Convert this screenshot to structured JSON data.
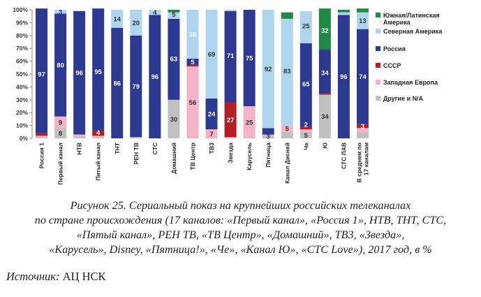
{
  "chart_data": {
    "type": "bar",
    "stacked": true,
    "percent": true,
    "ylim": [
      0,
      100
    ],
    "yticks": [
      "0%",
      "10%",
      "20%",
      "30%",
      "40%",
      "50%",
      "60%",
      "70%",
      "80%",
      "90%",
      "100%"
    ],
    "categories": [
      "Россия 1",
      "Первый канал",
      "НТВ",
      "Пятый канал",
      "ТНТ",
      "РЕН ТВ",
      "СТС",
      "Домашний",
      "ТВ Центр",
      "ТВ3",
      "Звезда",
      "Карусель",
      "Пятница",
      "Канал Дисней",
      "Че",
      "Ю",
      "СТС ЛАВ",
      "В среднем по 17 каналам"
    ],
    "series": [
      {
        "name": "Другие и N/A",
        "color": "#c0c0c0",
        "values": [
          1,
          8,
          2,
          1,
          0,
          1,
          0,
          30,
          0,
          0,
          0,
          0,
          3,
          5,
          5,
          34,
          0,
          5
        ]
      },
      {
        "name": "Западная Европа",
        "color": "#f6b2c8",
        "values": [
          1,
          9,
          1,
          1,
          0,
          0,
          0,
          0,
          56,
          7,
          1,
          25,
          0,
          5,
          2,
          0,
          0,
          3
        ]
      },
      {
        "name": "СССР",
        "color": "#b21e23",
        "values": [
          2,
          0,
          0,
          4,
          0,
          0,
          0,
          0,
          1,
          0,
          27,
          0,
          0,
          0,
          2,
          1,
          0,
          3
        ]
      },
      {
        "name": "Россия",
        "color": "#2b3990",
        "values": [
          97,
          80,
          96,
          95,
          86,
          79,
          96,
          63,
          5,
          24,
          71,
          75,
          5,
          0,
          65,
          34,
          96,
          74
        ]
      },
      {
        "name": "Северная Америка",
        "color": "#aed4ef",
        "values": [
          0,
          3,
          0,
          0,
          14,
          20,
          4,
          5,
          38,
          69,
          1,
          0,
          92,
          83,
          25,
          0,
          2,
          13
        ]
      },
      {
        "name": "Южная/Латинская Америка",
        "color": "#1f8a45",
        "values": [
          0,
          0,
          0,
          0,
          0,
          0,
          0,
          2,
          0,
          0,
          0,
          0,
          0,
          5,
          0,
          32,
          2,
          3
        ]
      }
    ],
    "labels": [
      {
        "bar": 0,
        "text": "97",
        "y": 50,
        "color": "#ffffff"
      },
      {
        "bar": 1,
        "text": "3",
        "y": 98.5,
        "color": "#2b3990"
      },
      {
        "bar": 1,
        "text": "80",
        "y": 57,
        "color": "#ffffff"
      },
      {
        "bar": 1,
        "text": "9",
        "y": 12.5,
        "color": "#333333"
      },
      {
        "bar": 1,
        "text": "8",
        "y": 4,
        "color": "#333333"
      },
      {
        "bar": 2,
        "text": "96",
        "y": 51,
        "color": "#ffffff"
      },
      {
        "bar": 3,
        "text": "95",
        "y": 52,
        "color": "#ffffff"
      },
      {
        "bar": 3,
        "text": "4",
        "y": 4.5,
        "color": "#ffffff"
      },
      {
        "bar": 4,
        "text": "14",
        "y": 93,
        "color": "#333333"
      },
      {
        "bar": 4,
        "text": "86",
        "y": 43,
        "color": "#ffffff"
      },
      {
        "bar": 5,
        "text": "20",
        "y": 90,
        "color": "#333333"
      },
      {
        "bar": 5,
        "text": "79",
        "y": 40.5,
        "color": "#ffffff"
      },
      {
        "bar": 6,
        "text": "4",
        "y": 98,
        "color": "#333333"
      },
      {
        "bar": 6,
        "text": "96",
        "y": 48,
        "color": "#ffffff"
      },
      {
        "bar": 7,
        "text": "5",
        "y": 96.5,
        "color": "#333333"
      },
      {
        "bar": 7,
        "text": "63",
        "y": 62,
        "color": "#ffffff"
      },
      {
        "bar": 7,
        "text": "30",
        "y": 15,
        "color": "#333333"
      },
      {
        "bar": 8,
        "text": "38",
        "y": 81,
        "color": "#ffffff"
      },
      {
        "bar": 8,
        "text": "5",
        "y": 59.5,
        "color": "#ffffff"
      },
      {
        "bar": 8,
        "text": "56",
        "y": 28,
        "color": "#333333"
      },
      {
        "bar": 9,
        "text": "69",
        "y": 65.5,
        "color": "#333333"
      },
      {
        "bar": 9,
        "text": "24",
        "y": 19,
        "color": "#ffffff"
      },
      {
        "bar": 9,
        "text": "7",
        "y": 3.5,
        "color": "#333333"
      },
      {
        "bar": 10,
        "text": "71",
        "y": 64.5,
        "color": "#ffffff"
      },
      {
        "bar": 10,
        "text": "27",
        "y": 14.5,
        "color": "#ffffff"
      },
      {
        "bar": 11,
        "text": "75",
        "y": 62.5,
        "color": "#ffffff"
      },
      {
        "bar": 11,
        "text": "25",
        "y": 12.5,
        "color": "#333333"
      },
      {
        "bar": 12,
        "text": "92",
        "y": 54,
        "color": "#333333"
      },
      {
        "bar": 12,
        "text": "3",
        "y": 1.5,
        "color": "#333333"
      },
      {
        "bar": 13,
        "text": "83",
        "y": 52.5,
        "color": "#333333"
      },
      {
        "bar": 13,
        "text": "5",
        "y": 7.5,
        "color": "#333333"
      },
      {
        "bar": 14,
        "text": "25",
        "y": 87.5,
        "color": "#333333"
      },
      {
        "bar": 14,
        "text": "65",
        "y": 42.5,
        "color": "#ffffff"
      },
      {
        "bar": 14,
        "text": "2",
        "y": 11,
        "color": "#ffffff"
      },
      {
        "bar": 14,
        "text": "5",
        "y": 2.5,
        "color": "#333333"
      },
      {
        "bar": 15,
        "text": "32",
        "y": 84,
        "color": "#ffffff"
      },
      {
        "bar": 15,
        "text": "34",
        "y": 51,
        "color": "#ffffff"
      },
      {
        "bar": 15,
        "text": "34",
        "y": 17,
        "color": "#333333"
      },
      {
        "bar": 16,
        "text": "96",
        "y": 48,
        "color": "#ffffff"
      },
      {
        "bar": 17,
        "text": "13",
        "y": 91.5,
        "color": "#333333"
      },
      {
        "bar": 17,
        "text": "74",
        "y": 48,
        "color": "#ffffff"
      },
      {
        "bar": 17,
        "text": "3",
        "y": 9.5,
        "color": "#ffffff"
      }
    ],
    "legend": [
      "Южная/Латинская Америка",
      "Северная Америка",
      "Россия",
      "СССР",
      "Западная Европа",
      "Другие и N/A"
    ],
    "legend_position": "right"
  },
  "caption_lines": [
    "Рисунок 25. Сериальный показ на крупнейших российских телеканалах",
    "по стране происхождения (17 каналов: «Первый канал», «Россия 1», НТВ, ТНТ, СТС,",
    "«Пятый канал», РЕН ТВ, «ТВ Центр», «Домашний», ТВ3, «Звезда»,",
    "«Карусель», Disney, «Пятница!», «Че», «Канал Ю», «СТС Love»), 2017 год, в %"
  ],
  "source": {
    "label": "Источник:",
    "value": "АЦ НСК"
  }
}
